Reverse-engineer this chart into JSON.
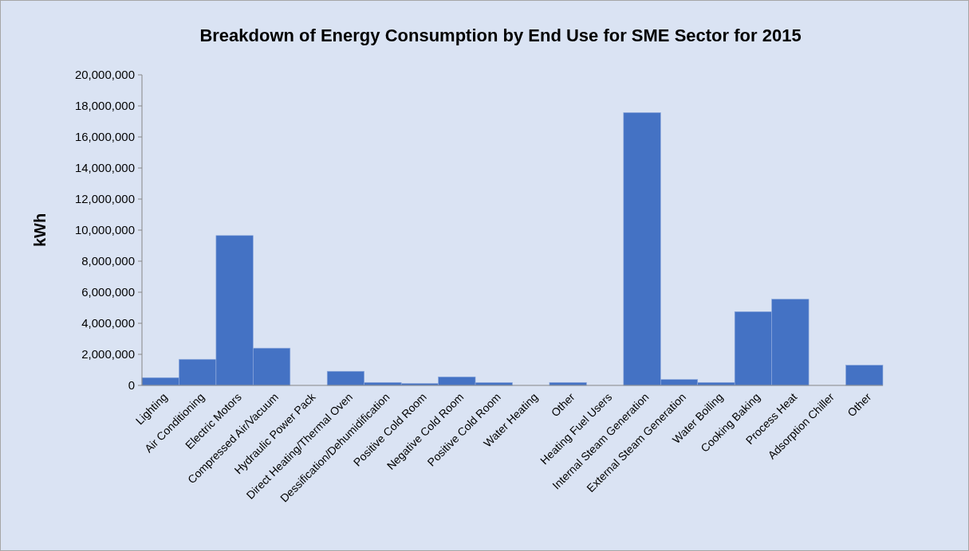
{
  "chart_data": {
    "type": "bar",
    "title": "Breakdown of Energy Consumption by End Use for SME Sector for 2015",
    "ylabel": "kWh",
    "categories": [
      "Lighting",
      "Air Conditioning",
      "Electric Motors",
      "Compressed Air/Vacuum",
      "Hydraulic Power Pack",
      "Direct Heating/Thermal Oven",
      "Dessification/Dehumidification",
      "Positive Cold Room",
      "Negative Cold Room",
      "Positive Cold Room",
      "Water Heating",
      "Other",
      "Heating Fuel Users",
      "Internal Steam Generation",
      "External Steam Generation",
      "Water Boiling",
      "Cooking Baking",
      "Process Heat",
      "Adsorption Chiller",
      "Other"
    ],
    "values": [
      500000,
      1680000,
      9650000,
      2400000,
      0,
      910000,
      190000,
      120000,
      550000,
      180000,
      0,
      190000,
      0,
      17570000,
      380000,
      190000,
      4750000,
      5550000,
      0,
      1300000
    ],
    "color": "#4472c4",
    "ylim": [
      0,
      20000000
    ],
    "yticks": [
      {
        "value": 0,
        "label": "0"
      },
      {
        "value": 2000000,
        "label": "2,000,000"
      },
      {
        "value": 4000000,
        "label": "4,000,000"
      },
      {
        "value": 6000000,
        "label": "6,000,000"
      },
      {
        "value": 8000000,
        "label": "8,000,000"
      },
      {
        "value": 10000000,
        "label": "10,000,000"
      },
      {
        "value": 12000000,
        "label": "12,000,000"
      },
      {
        "value": 14000000,
        "label": "14,000,000"
      },
      {
        "value": 16000000,
        "label": "16,000,000"
      },
      {
        "value": 18000000,
        "label": "18,000,000"
      },
      {
        "value": 20000000,
        "label": "20,000,000"
      }
    ],
    "grid": false
  }
}
